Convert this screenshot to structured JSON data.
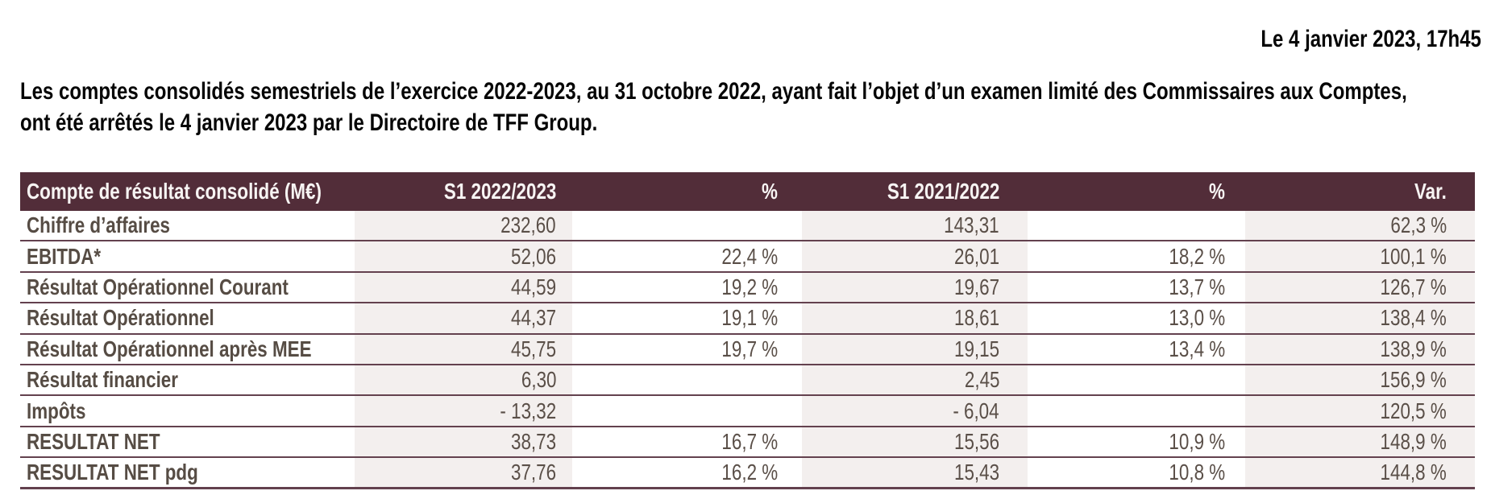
{
  "document": {
    "date_line": "Le 4 janvier 2023, 17h45",
    "intro_lines": [
      "Les comptes consolidés semestriels de l’exercice 2022-2023, au 31 octobre 2022, ayant fait l’objet d’un examen limité des Commissaires aux Comptes,",
      "ont été arrêtés le 4 janvier 2023 par le Directoire de TFF Group."
    ]
  },
  "table": {
    "columns": [
      "Compte de résultat consolidé (M€)",
      "S1 2022/2023",
      "%",
      "S1 2021/2022",
      "%",
      "Var."
    ],
    "rows": [
      {
        "label": "Chiffre d’affaires",
        "v1": "232,60",
        "p1": "",
        "v2": "143,31",
        "p2": "",
        "var": "62,3 %"
      },
      {
        "label": "EBITDA*",
        "v1": "52,06",
        "p1": "22,4 %",
        "v2": "26,01",
        "p2": "18,2 %",
        "var": "100,1 %"
      },
      {
        "label": "Résultat Opérationnel Courant",
        "v1": "44,59",
        "p1": "19,2 %",
        "v2": "19,67",
        "p2": "13,7 %",
        "var": "126,7 %"
      },
      {
        "label": "Résultat Opérationnel",
        "v1": "44,37",
        "p1": "19,1 %",
        "v2": "18,61",
        "p2": "13,0 %",
        "var": "138,4 %"
      },
      {
        "label": "Résultat Opérationnel après MEE",
        "v1": "45,75",
        "p1": "19,7 %",
        "v2": "19,15",
        "p2": "13,4 %",
        "var": "138,9 %"
      },
      {
        "label": "Résultat financier",
        "v1": "6,30",
        "p1": "",
        "v2": "2,45",
        "p2": "",
        "var": "156,9 %"
      },
      {
        "label": "Impôts",
        "v1": "- 13,32",
        "p1": "",
        "v2": "- 6,04",
        "p2": "",
        "var": "120,5 %"
      },
      {
        "label": "RESULTAT NET",
        "v1": "38,73",
        "p1": "16,7 %",
        "v2": "15,56",
        "p2": "10,9 %",
        "var": "148,9 %"
      },
      {
        "label": "RESULTAT NET pdg",
        "v1": "37,76",
        "p1": "16,2 %",
        "v2": "15,43",
        "p2": "10,8 %",
        "var": "144,8 %"
      }
    ],
    "colors": {
      "header_bg": "#522d39",
      "header_text": "#f7f4f3",
      "column_shade": "#f3efee",
      "row_line": "#63414e",
      "label_text": "#564c44",
      "value_text": "#5a4f48"
    }
  }
}
